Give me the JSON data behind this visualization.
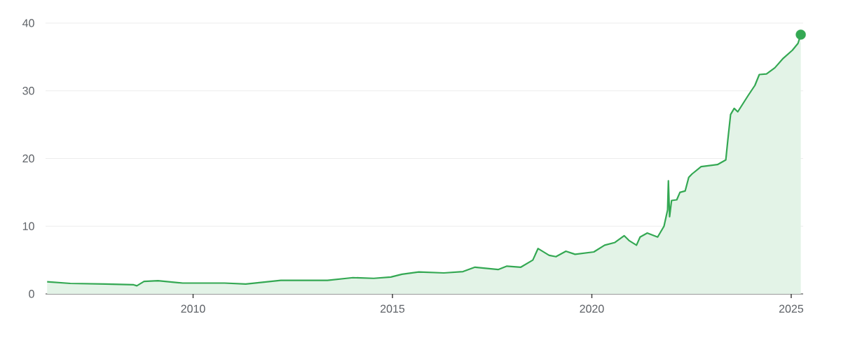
{
  "chart_data": {
    "type": "area",
    "series": [
      {
        "color": "#34a853",
        "x": [
          2006.34,
          2006.92,
          2007.8,
          2008.51,
          2008.59,
          2008.77,
          2009.12,
          2009.74,
          2010.79,
          2011.32,
          2012.2,
          2013.37,
          2014.01,
          2014.53,
          2014.96,
          2015.24,
          2015.66,
          2016.29,
          2016.77,
          2017.07,
          2017.65,
          2017.87,
          2018.22,
          2018.52,
          2018.65,
          2018.93,
          2019.1,
          2019.35,
          2019.58,
          2020.05,
          2020.32,
          2020.58,
          2020.81,
          2020.93,
          2021.12,
          2021.21,
          2021.39,
          2021.65,
          2021.81,
          2021.9,
          2021.92,
          2021.95,
          2022.0,
          2022.13,
          2022.21,
          2022.34,
          2022.43,
          2022.51,
          2022.74,
          2023.15,
          2023.36,
          2023.41,
          2023.48,
          2023.57,
          2023.66,
          2023.92,
          2024.09,
          2024.2,
          2024.38,
          2024.59,
          2024.8,
          2025.03,
          2025.17,
          2025.24
        ],
        "values": [
          1.8,
          1.55,
          1.45,
          1.35,
          1.2,
          1.85,
          1.95,
          1.6,
          1.6,
          1.45,
          2.0,
          2.0,
          2.4,
          2.3,
          2.5,
          2.9,
          3.25,
          3.1,
          3.3,
          3.95,
          3.6,
          4.1,
          3.95,
          5.0,
          6.7,
          5.7,
          5.5,
          6.3,
          5.85,
          6.2,
          7.2,
          7.6,
          8.6,
          7.9,
          7.2,
          8.4,
          9.0,
          8.4,
          10.0,
          12.4,
          16.7,
          11.4,
          13.8,
          13.9,
          15.0,
          15.2,
          17.2,
          17.7,
          18.8,
          19.1,
          19.8,
          22.7,
          26.5,
          27.4,
          26.9,
          29.3,
          30.8,
          32.4,
          32.5,
          33.4,
          34.8,
          36.0,
          37.0,
          38.3
        ]
      },
      {
        "type": "scatter",
        "color": "#34a853",
        "x": [
          2025.24
        ],
        "values": [
          38.3
        ]
      }
    ],
    "xlim": [
      2006.3,
      2025.3
    ],
    "xticks": [
      2010,
      2015,
      2020,
      2025
    ],
    "ylim": [
      0,
      40
    ],
    "yticks": [
      0,
      10,
      20,
      30,
      40
    ],
    "grid": "y"
  }
}
